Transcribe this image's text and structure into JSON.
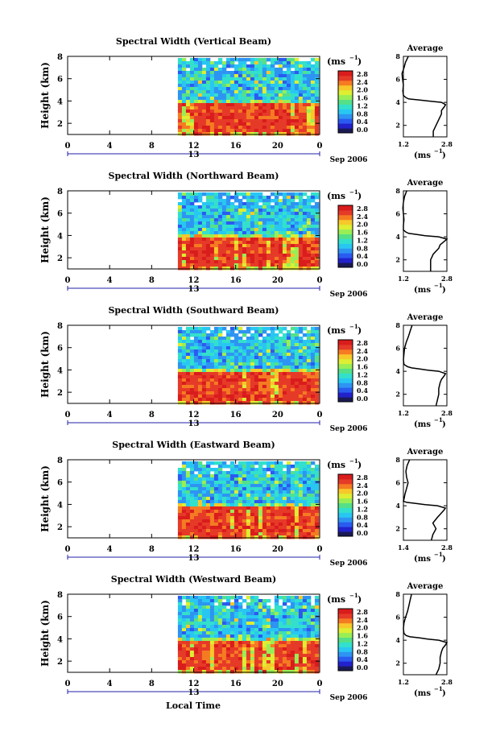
{
  "chart_data": {
    "type": "heatmap",
    "xlabel": "Local Time",
    "x_ticks": [
      "0",
      "4",
      "8",
      "12",
      "16",
      "20",
      "0"
    ],
    "date_label": "13",
    "month_label": "Sep 2006",
    "y_ticks": [
      "2",
      "4",
      "6",
      "8"
    ],
    "ylabel": "Height (km)",
    "xlim": [
      0,
      24
    ],
    "ylim": [
      1,
      8
    ],
    "data_start_hour": 10.5,
    "colorbar": {
      "unit_label": "(ms",
      "unit_exp": "−1",
      "ticks": [
        "2.8",
        "2.4",
        "2.0",
        "1.6",
        "1.2",
        "0.8",
        "0.4",
        "0.0"
      ],
      "range": [
        0,
        3
      ],
      "colors": [
        "#1a1a55",
        "#2222cc",
        "#2a5bf0",
        "#2e94f2",
        "#28c7f2",
        "#33e0cc",
        "#55e088",
        "#9aee55",
        "#ddee33",
        "#f7c82a",
        "#f57b22",
        "#e63a28",
        "#d91c1c"
      ]
    },
    "average_panel": {
      "title": "Average",
      "xlabel": "(ms",
      "xlabel_exp": "−1",
      "ylim": [
        1,
        8
      ],
      "y_ticks": [
        "2",
        "4",
        "6",
        "8"
      ]
    },
    "panels": [
      {
        "title": "Spectral Width (Vertical Beam)",
        "avg_x_ticks": [
          "1.2",
          "2.8"
        ],
        "avg_xlim": [
          1.2,
          2.8
        ],
        "profile_height": [
          1.0,
          1.5,
          2.0,
          2.5,
          3.0,
          3.3,
          3.6,
          3.8,
          4.0,
          4.1,
          4.2,
          4.3,
          4.4,
          4.6,
          5.0,
          5.5,
          6.0,
          6.5,
          7.0,
          7.5,
          8.0
        ],
        "profile_width": [
          2.3,
          2.3,
          2.4,
          2.5,
          2.6,
          2.6,
          2.7,
          2.75,
          2.6,
          2.2,
          1.8,
          1.4,
          1.3,
          1.2,
          1.18,
          1.2,
          1.17,
          1.15,
          1.22,
          1.28,
          1.38
        ]
      },
      {
        "title": "Spectral Width (Northward Beam)",
        "avg_x_ticks": [
          "1.2",
          "2.8"
        ],
        "avg_xlim": [
          1.2,
          2.8
        ],
        "profile_height": [
          1.0,
          1.5,
          2.0,
          2.5,
          3.0,
          3.3,
          3.6,
          3.8,
          4.0,
          4.1,
          4.2,
          4.3,
          4.4,
          4.6,
          5.0,
          5.5,
          6.0,
          6.5,
          7.0,
          7.5,
          8.0
        ],
        "profile_width": [
          2.2,
          2.2,
          2.2,
          2.3,
          2.5,
          2.55,
          2.7,
          2.8,
          2.5,
          2.0,
          1.7,
          1.4,
          1.3,
          1.2,
          1.2,
          1.22,
          1.2,
          1.18,
          1.2,
          1.24,
          1.32
        ]
      },
      {
        "title": "Spectral Width (Southward Beam)",
        "avg_x_ticks": [
          "1.2",
          "2.8"
        ],
        "avg_xlim": [
          1.2,
          2.8
        ],
        "profile_height": [
          1.0,
          1.5,
          2.0,
          2.5,
          3.0,
          3.3,
          3.6,
          3.8,
          4.0,
          4.1,
          4.2,
          4.3,
          4.4,
          4.6,
          5.0,
          5.5,
          6.0,
          6.5,
          7.0,
          7.5,
          8.0
        ],
        "profile_width": [
          2.4,
          2.45,
          2.5,
          2.5,
          2.55,
          2.6,
          2.7,
          2.75,
          2.5,
          2.1,
          1.8,
          1.5,
          1.35,
          1.22,
          1.2,
          1.22,
          1.24,
          1.3,
          1.38,
          1.45,
          1.52
        ]
      },
      {
        "title": "Spectral Width (Eastward Beam)",
        "avg_x_ticks": [
          "1.4",
          "2.8"
        ],
        "avg_xlim": [
          1.4,
          2.8
        ],
        "profile_height": [
          1.0,
          1.5,
          2.0,
          2.5,
          3.0,
          3.3,
          3.6,
          3.8,
          4.0,
          4.1,
          4.2,
          4.3,
          4.4,
          4.6,
          5.0,
          5.5,
          6.0,
          6.5,
          7.0,
          7.5,
          8.0
        ],
        "profile_width": [
          2.3,
          2.35,
          2.45,
          2.35,
          2.5,
          2.6,
          2.7,
          2.75,
          2.5,
          2.1,
          1.8,
          1.5,
          1.4,
          1.42,
          1.45,
          1.5,
          1.55,
          1.5,
          1.48,
          1.52,
          1.6
        ]
      },
      {
        "title": "Spectral Width (Westward Beam)",
        "avg_x_ticks": [
          "1.2",
          "2.8"
        ],
        "avg_xlim": [
          1.2,
          2.8
        ],
        "profile_height": [
          1.0,
          1.5,
          2.0,
          2.5,
          3.0,
          3.3,
          3.6,
          3.8,
          4.0,
          4.1,
          4.2,
          4.3,
          4.4,
          4.6,
          5.0,
          5.5,
          6.0,
          6.5,
          7.0,
          7.5,
          8.0
        ],
        "profile_width": [
          2.4,
          2.5,
          2.55,
          2.55,
          2.6,
          2.65,
          2.75,
          2.8,
          2.5,
          2.1,
          1.8,
          1.45,
          1.3,
          1.22,
          1.2,
          1.22,
          1.28,
          1.35,
          1.4,
          1.45,
          1.5
        ]
      }
    ]
  }
}
